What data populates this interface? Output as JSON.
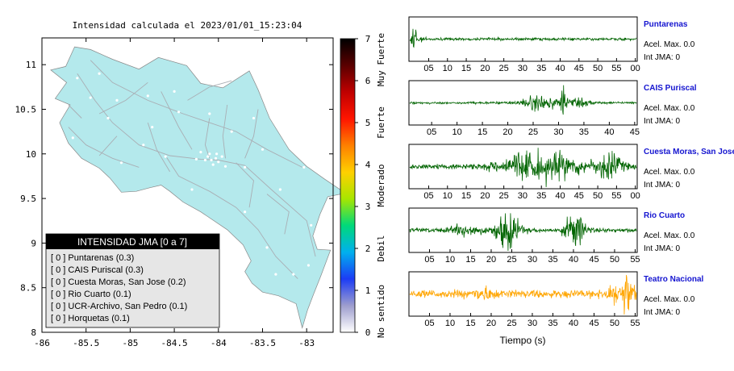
{
  "map": {
    "title": "Intensidad calculada el 2023/01/01_15:23:04",
    "chart_data": {
      "type": "map",
      "x_ticks": [
        -86,
        -85.5,
        -85,
        -84.5,
        -84,
        -83.5,
        -83
      ],
      "x_tick_labels": [
        "-86",
        "-85.5",
        "-85",
        "-84.5",
        "-84",
        "-83.5",
        "-83"
      ],
      "y_ticks": [
        8,
        8.5,
        9,
        9.5,
        10,
        10.5,
        11
      ],
      "y_tick_labels": [
        "8",
        "8.5",
        "9",
        "9.5",
        "10",
        "10.5",
        "11"
      ],
      "xlim": [
        -86,
        -82.7
      ],
      "ylim": [
        8,
        11.3
      ],
      "land_color": "#b4e9ec",
      "road_color": "#a9aeb4"
    },
    "legend": {
      "header": "INTENSIDAD JMA [0 a 7]",
      "entries": [
        "[ 0 ]  Puntarenas (0.3)",
        "[ 0 ]  CAIS Puriscal (0.3)",
        "[ 0 ]  Cuesta Moras, San Jose (0.2)",
        "[ 0 ]  Rio Cuarto (0.1)",
        "[ 0 ]  UCR-Archivo, San Pedro (0.1)",
        "[ 0 ]  Horquetas (0.1)"
      ]
    }
  },
  "colorbar": {
    "ticks": [
      "0",
      "1",
      "2",
      "3",
      "4",
      "5",
      "6",
      "7"
    ],
    "labels": [
      "No sentido",
      "Debil",
      "Moderado",
      "Fuerte",
      "Muy Fuerte"
    ],
    "colors": [
      "#ffffff",
      "#9d9dce",
      "#1c3cf5",
      "#00b0ee",
      "#00d97a",
      "#a8e600",
      "#ffd000",
      "#ff8000",
      "#ff1500",
      "#c00000",
      "#5a0000",
      "#000000"
    ]
  },
  "seismograms": {
    "xlabel": "Tiempo (s)",
    "chart_data": [
      {
        "type": "line",
        "station": "Puntarenas",
        "acel": "Acel. Max. 0.0",
        "int": "Int JMA: 0",
        "color": "#006400",
        "x_tick_labels": [
          "05",
          "10",
          "15",
          "20",
          "25",
          "30",
          "35",
          "40",
          "45",
          "50",
          "55",
          "00"
        ],
        "pattern": "spike-early"
      },
      {
        "type": "line",
        "station": "CAIS Puriscal",
        "acel": "Acel. Max. 0.0",
        "int": "Int JMA: 0",
        "color": "#006400",
        "x_tick_labels": [
          "05",
          "10",
          "15",
          "20",
          "25",
          "30",
          "35",
          "40",
          "45"
        ],
        "pattern": "burst-mid"
      },
      {
        "type": "line",
        "station": "Cuesta Moras, San Jose",
        "acel": "Acel. Max. 0.0",
        "int": "Int JMA: 0",
        "color": "#006400",
        "x_tick_labels": [
          "05",
          "10",
          "15",
          "20",
          "25",
          "30",
          "35",
          "40",
          "45",
          "50",
          "55",
          "00"
        ],
        "pattern": "broad"
      },
      {
        "type": "line",
        "station": "Rio Cuarto",
        "acel": "Acel. Max. 0.0",
        "int": "Int JMA: 0",
        "color": "#006400",
        "x_tick_labels": [
          "05",
          "10",
          "15",
          "20",
          "25",
          "30",
          "35",
          "40",
          "45",
          "50",
          "55"
        ],
        "pattern": "two-bursts"
      },
      {
        "type": "line",
        "station": "Teatro Nacional",
        "acel": "Acel. Max. 0.0",
        "int": "Int JMA: 0",
        "color": "#ffa500",
        "x_tick_labels": [
          "05",
          "10",
          "15",
          "20",
          "25",
          "30",
          "35",
          "40",
          "45",
          "50",
          "55"
        ],
        "pattern": "late-peak"
      }
    ]
  }
}
